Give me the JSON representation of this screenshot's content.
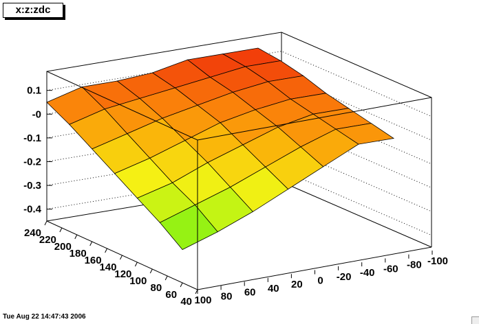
{
  "title": "x:z:zdc",
  "timestamp": "Tue Aug 22 14:47:43 2006",
  "chart_data": {
    "type": "surface",
    "grid": true,
    "zlim": [
      -0.45,
      0.18
    ],
    "x_range": [
      40,
      240
    ],
    "y_range": [
      -100,
      100
    ],
    "z_ticks": [
      "0.1",
      "-0",
      "-0.1",
      "-0.2",
      "-0.3",
      "-0.4"
    ],
    "x_ticks": [
      "240",
      "220",
      "200",
      "180",
      "160",
      "140",
      "120",
      "100",
      "80",
      "60",
      "40"
    ],
    "y_ticks": [
      "100",
      "80",
      "60",
      "40",
      "20",
      "0",
      "-20",
      "-40",
      "-60",
      "-80",
      "-100"
    ],
    "x_grid": [
      240,
      210,
      180,
      150,
      120,
      90,
      60
    ],
    "y_grid": [
      100,
      70,
      40,
      10,
      -20,
      -50,
      -80
    ],
    "z": [
      [
        0.05,
        0.09,
        0.09,
        0.1,
        0.13,
        0.13,
        0.13
      ],
      [
        0.0,
        0.04,
        0.06,
        0.08,
        0.1,
        0.12,
        0.12
      ],
      [
        -0.06,
        -0.02,
        0.02,
        0.05,
        0.08,
        0.1,
        0.1
      ],
      [
        -0.12,
        -0.08,
        -0.03,
        0.02,
        0.05,
        0.07,
        0.07
      ],
      [
        -0.18,
        -0.14,
        -0.08,
        -0.03,
        0.02,
        0.05,
        0.05
      ],
      [
        -0.24,
        -0.19,
        -0.14,
        -0.08,
        -0.02,
        0.03,
        0.03
      ],
      [
        -0.31,
        -0.26,
        -0.2,
        -0.13,
        -0.06,
        0.01,
        0.01
      ]
    ]
  }
}
